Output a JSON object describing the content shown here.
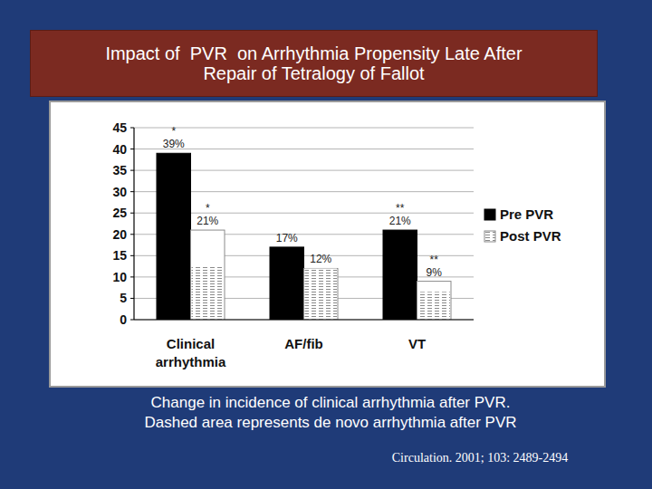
{
  "chart_data": {
    "type": "bar",
    "title": "Impact of  PVR  on Arrhythmia Propensity Late After Repair of Tetralogy of Fallot",
    "categories": [
      "Clinical arrhythmia",
      "AF/fib",
      "VT"
    ],
    "series": [
      {
        "name": "Pre PVR",
        "color": "#000000",
        "values": [
          39,
          17,
          21
        ],
        "value_labels": [
          "39%",
          "17%",
          "21%"
        ],
        "annotations": [
          "*",
          null,
          "**"
        ]
      },
      {
        "name": "Post PVR",
        "color": "#ffffff",
        "values": [
          21,
          12,
          9
        ],
        "value_labels": [
          "21%",
          "12%",
          "9%"
        ],
        "annotations": [
          "*",
          null,
          "**"
        ],
        "de_novo": [
          12.5,
          12,
          6.5
        ]
      }
    ],
    "ylim": [
      0,
      45
    ],
    "yticks": [
      0,
      5,
      10,
      15,
      20,
      25,
      30,
      35,
      40,
      45
    ],
    "grid": true,
    "legend": "right",
    "data_labels": true,
    "caption": [
      "Change in incidence of clinical arrhythmia after PVR.",
      "Dashed area represents de novo arrhythmia after PVR"
    ],
    "source": "Circulation. 2001; 103: 2489-2494"
  }
}
